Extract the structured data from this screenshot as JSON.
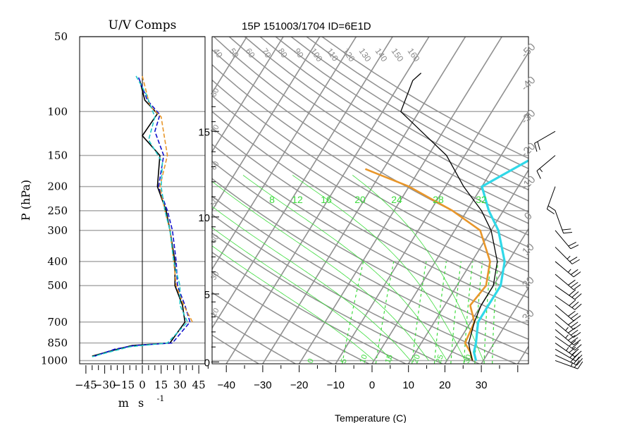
{
  "chart_data": [
    {
      "type": "line",
      "title": "U/V Comps",
      "xlabel": "m s",
      "xlabel_exponent": "-1",
      "ylabel": "P (hPa)",
      "xlim": [
        -50,
        50
      ],
      "ylim_hpa": [
        1000,
        50
      ],
      "y_scale": "log",
      "x_ticks": [
        -45,
        -30,
        -15,
        0,
        15,
        30,
        45
      ],
      "x_tick_labels": [
        "−45",
        "−30",
        "−15",
        "0",
        "15",
        "30",
        "45"
      ],
      "p_ticks": [
        50,
        100,
        150,
        200,
        250,
        300,
        400,
        500,
        700,
        850,
        1000
      ],
      "series": [
        {
          "color": "#000000",
          "points": [
            [
              -2,
              75
            ],
            [
              2,
              90
            ],
            [
              12,
              102
            ],
            [
              0,
              125
            ],
            [
              14,
              150
            ],
            [
              12,
              200
            ],
            [
              19,
              250
            ],
            [
              22,
              300
            ],
            [
              26,
              400
            ],
            [
              26,
              500
            ],
            [
              32,
              600
            ],
            [
              34,
              700
            ],
            [
              22,
              850
            ],
            [
              -8,
              870
            ],
            [
              -20,
              900
            ],
            [
              -40,
              960
            ]
          ]
        },
        {
          "color": "#1010cc",
          "points": [
            [
              -3,
              73
            ],
            [
              4,
              90
            ],
            [
              14,
              103
            ],
            [
              10,
              120
            ],
            [
              17,
              150
            ],
            [
              13,
              200
            ],
            [
              20,
              250
            ],
            [
              24,
              300
            ],
            [
              27,
              400
            ],
            [
              28,
              500
            ],
            [
              34,
              600
            ],
            [
              38,
              700
            ],
            [
              24,
              850
            ],
            [
              -6,
              870
            ],
            [
              -22,
              900
            ],
            [
              -38,
              960
            ]
          ]
        },
        {
          "color": "#e8962a",
          "points": [
            [
              0,
              72
            ],
            [
              6,
              95
            ],
            [
              15,
              105
            ],
            [
              18,
              130
            ],
            [
              20,
              150
            ],
            [
              14,
              200
            ],
            [
              18,
              250
            ],
            [
              22,
              300
            ],
            [
              25,
              400
            ],
            [
              27,
              500
            ],
            [
              33,
              600
            ],
            [
              40,
              700
            ]
          ]
        },
        {
          "color": "#20c8c8",
          "points": [
            [
              -5,
              72
            ],
            [
              3,
              85
            ],
            [
              10,
              105
            ],
            [
              5,
              130
            ],
            [
              16,
              160
            ],
            [
              15,
              200
            ],
            [
              18,
              250
            ],
            [
              22,
              300
            ],
            [
              25,
              400
            ],
            [
              30,
              500
            ],
            [
              30,
              600
            ],
            [
              36,
              700
            ],
            [
              20,
              850
            ],
            [
              -10,
              880
            ],
            [
              -25,
              920
            ],
            [
              -40,
              965
            ]
          ]
        }
      ]
    },
    {
      "type": "line",
      "title": "15P 151003/1704 ID=6E1D",
      "xlabel": "Temperature (C)",
      "xlim": [
        -45,
        40
      ],
      "x_ticks": [
        -40,
        -30,
        -20,
        -10,
        0,
        10,
        20,
        30
      ],
      "x_tick_labels": [
        "−40",
        "−30",
        "−20",
        "−10",
        "0",
        "10",
        "20",
        "30"
      ],
      "p_ticks": [
        50,
        100,
        150,
        200,
        250,
        300,
        400,
        500,
        700,
        850,
        1000
      ],
      "height_km_ticks": [
        0,
        5,
        10,
        15
      ],
      "isotherm_labels": [
        "-50",
        "-40",
        "-30",
        "-20",
        "-10",
        "0",
        "10",
        "20",
        "30"
      ],
      "dry_adiabat_labels": [
        "40",
        "50",
        "60",
        "70",
        "80",
        "90",
        "100",
        "110",
        "120",
        "130",
        "140",
        "150",
        "160"
      ],
      "left_theta_labels": [
        "80",
        "70",
        "60",
        "50",
        "40",
        "30",
        "20"
      ],
      "mixing_ratio_labels": [
        "8",
        "12",
        "16",
        "20",
        "24",
        "28",
        "32"
      ],
      "moist_adiabat_labels": [
        "0",
        "5",
        "10",
        "15",
        "20",
        "25",
        "30"
      ],
      "colors": {
        "isotherm": "#909090",
        "grid": "#aaaaaa",
        "mixing_ratio": "#3ddc3d",
        "temperature": "#000000",
        "dewpoint": "#e8962a",
        "virtual_temperature": "#30d8e8"
      },
      "temperature": [
        [
          27,
          1000
        ],
        [
          25,
          925
        ],
        [
          23,
          850
        ],
        [
          21,
          700
        ],
        [
          20,
          600
        ],
        [
          20,
          500
        ],
        [
          17,
          400
        ],
        [
          10,
          300
        ],
        [
          4,
          250
        ],
        [
          -5,
          200
        ],
        [
          -15,
          150
        ],
        [
          -26,
          120
        ],
        [
          -35,
          100
        ],
        [
          -37,
          75
        ],
        [
          -36,
          70
        ]
      ],
      "dewpoint": [
        [
          27,
          1000
        ],
        [
          25,
          925
        ],
        [
          22,
          850
        ],
        [
          21,
          700
        ],
        [
          17,
          600
        ],
        [
          18,
          500
        ],
        [
          15,
          400
        ],
        [
          7,
          300
        ],
        [
          -4,
          250
        ],
        [
          -20,
          200
        ],
        [
          -35,
          170
        ]
      ],
      "virtual_temperature": [
        [
          28,
          1000
        ],
        [
          26,
          925
        ],
        [
          25,
          850
        ],
        [
          22,
          700
        ],
        [
          22,
          600
        ],
        [
          22,
          500
        ],
        [
          19,
          400
        ],
        [
          12,
          300
        ],
        [
          6,
          250
        ],
        [
          0,
          200
        ],
        [
          10,
          150
        ],
        [
          24,
          120
        ],
        [
          44,
          90
        ]
      ],
      "wind_barbs": [
        {
          "p": 1000,
          "dir": 110,
          "speed": 25
        },
        {
          "p": 950,
          "dir": 115,
          "speed": 30
        },
        {
          "p": 900,
          "dir": 120,
          "speed": 30
        },
        {
          "p": 850,
          "dir": 125,
          "speed": 35
        },
        {
          "p": 800,
          "dir": 125,
          "speed": 30
        },
        {
          "p": 750,
          "dir": 130,
          "speed": 35
        },
        {
          "p": 700,
          "dir": 130,
          "speed": 35
        },
        {
          "p": 650,
          "dir": 130,
          "speed": 30
        },
        {
          "p": 600,
          "dir": 130,
          "speed": 30
        },
        {
          "p": 550,
          "dir": 125,
          "speed": 30
        },
        {
          "p": 500,
          "dir": 125,
          "speed": 30
        },
        {
          "p": 450,
          "dir": 130,
          "speed": 30
        },
        {
          "p": 400,
          "dir": 130,
          "speed": 25
        },
        {
          "p": 350,
          "dir": 135,
          "speed": 25
        },
        {
          "p": 300,
          "dir": 140,
          "speed": 20
        },
        {
          "p": 250,
          "dir": 160,
          "speed": 20
        },
        {
          "p": 200,
          "dir": 200,
          "speed": 20
        },
        {
          "p": 150,
          "dir": 230,
          "speed": 15
        },
        {
          "p": 120,
          "dir": 240,
          "speed": 20
        }
      ]
    }
  ]
}
